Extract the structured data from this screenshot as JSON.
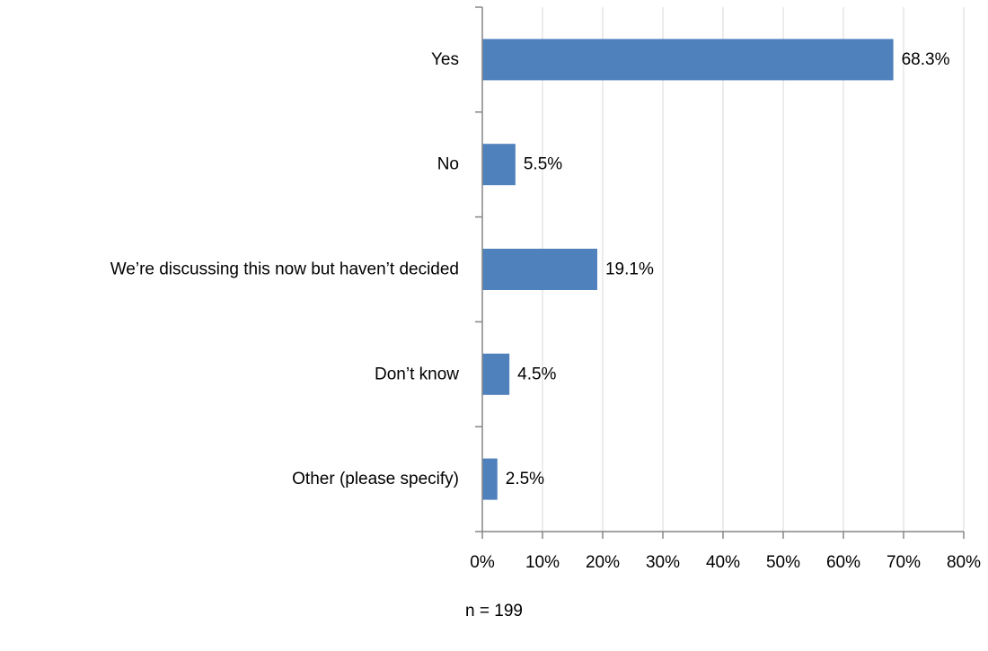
{
  "chart_data": {
    "type": "bar",
    "orientation": "horizontal",
    "categories": [
      "Yes",
      "No",
      "We’re discussing this now but haven’t decided",
      "Don’t know",
      "Other (please specify)"
    ],
    "values": [
      68.3,
      5.5,
      19.1,
      4.5,
      2.5
    ],
    "data_labels": [
      "68.3%",
      "5.5%",
      "19.1%",
      "4.5%",
      "2.5%"
    ],
    "title": "",
    "xlabel": "",
    "ylabel": "",
    "xlim": [
      0,
      80
    ],
    "xticks": [
      0,
      10,
      20,
      30,
      40,
      50,
      60,
      70,
      80
    ],
    "xtick_labels": [
      "0%",
      "10%",
      "20%",
      "30%",
      "40%",
      "50%",
      "60%",
      "70%",
      "80%"
    ],
    "grid": "vertical",
    "legend": "none",
    "bar_color": "#4f81bd",
    "grid_color": "#d9d9d9",
    "axis_color": "#868686"
  },
  "footer": {
    "note": "n = 199"
  }
}
